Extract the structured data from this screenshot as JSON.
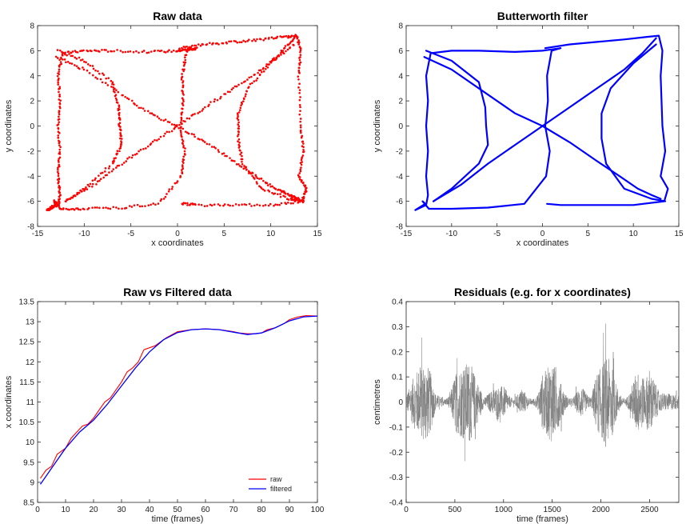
{
  "chart_data": [
    {
      "type": "scatter",
      "title": "Raw data",
      "xlabel": "x coordinates",
      "ylabel": "y coordinates",
      "xlim": [
        -15,
        15
      ],
      "ylim": [
        -8,
        8
      ],
      "xticks": [
        "-15",
        "-10",
        "-5",
        "0",
        "5",
        "10",
        "15"
      ],
      "yticks": [
        "-8",
        "-6",
        "-4",
        "-2",
        "0",
        "2",
        "4",
        "6",
        "8"
      ],
      "marker": "dots",
      "color": "#ff0000",
      "series": [
        {
          "x": [
            -14.0,
            -12.8,
            -12.6,
            -12.8,
            -12.6,
            -12.8,
            -12.6,
            -12.8,
            -12.3,
            -10.0,
            -7.0,
            -3.0,
            0.0,
            1.0,
            2.0,
            1.0,
            0.5,
            0.6,
            0.3,
            0.8,
            0.4,
            -2.0,
            -6.0,
            -10.0,
            -12.5,
            -13.2,
            -12.9,
            -14.0
          ],
          "y": [
            -6.7,
            -6.3,
            -5.5,
            -4.0,
            -2.0,
            0.0,
            2.0,
            4.0,
            5.8,
            6.0,
            6.0,
            5.9,
            6.0,
            6.1,
            6.2,
            6.0,
            4.0,
            2.0,
            0.0,
            -2.0,
            -4.0,
            -6.2,
            -6.5,
            -6.6,
            -6.6,
            -6.0,
            -6.2,
            -6.7
          ]
        },
        {
          "x": [
            -12.8,
            -10.0,
            -7.0,
            -6.3,
            -6.2,
            -6.0,
            -7.0,
            -10.0,
            -12.0
          ],
          "y": [
            6.0,
            5.2,
            3.5,
            1.5,
            0.0,
            -1.5,
            -3.0,
            -5.0,
            -6.0
          ]
        },
        {
          "x": [
            -13.0,
            -10.0,
            -6.0,
            -3.0,
            0.0,
            3.0,
            6.0,
            8.5,
            10.5,
            12.0,
            13.0
          ],
          "y": [
            5.5,
            4.5,
            2.5,
            1.0,
            0.0,
            -1.3,
            -2.8,
            -4.0,
            -5.0,
            -5.5,
            -5.8
          ]
        },
        {
          "x": [
            -12.0,
            -9.0,
            -6.0,
            -3.0,
            0.0,
            3.0,
            6.0,
            9.0,
            11.0,
            12.5
          ],
          "y": [
            -6.0,
            -4.7,
            -3.0,
            -1.5,
            0.0,
            1.5,
            3.0,
            4.5,
            5.8,
            7.0
          ]
        },
        {
          "x": [
            0.3,
            3.0,
            6.0,
            9.0,
            11.5,
            12.8,
            13.2,
            13.0,
            13.2,
            13.5,
            13.0,
            13.8,
            13.4,
            10.0,
            6.0,
            2.0,
            0.5
          ],
          "y": [
            6.2,
            6.5,
            6.7,
            6.9,
            7.1,
            7.2,
            6.0,
            4.0,
            0.0,
            -2.0,
            -4.0,
            -5.0,
            -6.0,
            -6.3,
            -6.3,
            -6.3,
            -6.2
          ]
        },
        {
          "x": [
            12.5,
            10.0,
            7.5,
            6.5,
            6.5,
            7.0,
            9.0,
            12.0,
            13.5
          ],
          "y": [
            6.5,
            5.0,
            3.0,
            1.0,
            -1.0,
            -3.0,
            -5.0,
            -5.8,
            -6.0
          ]
        }
      ]
    },
    {
      "type": "line",
      "title": "Butterworth filter",
      "xlabel": "x coordinates",
      "ylabel": "y coordinates",
      "xlim": [
        -15,
        15
      ],
      "ylim": [
        -8,
        8
      ],
      "xticks": [
        "-15",
        "-10",
        "-5",
        "0",
        "5",
        "10",
        "15"
      ],
      "yticks": [
        "-8",
        "-6",
        "-4",
        "-2",
        "0",
        "2",
        "4",
        "6",
        "8"
      ],
      "color": "#0000ff",
      "series": [
        {
          "x": [
            -14.0,
            -12.8,
            -12.6,
            -12.8,
            -12.6,
            -12.8,
            -12.6,
            -12.8,
            -12.3,
            -10.0,
            -7.0,
            -3.0,
            0.0,
            1.0,
            2.0,
            1.0,
            0.5,
            0.6,
            0.3,
            0.8,
            0.4,
            -2.0,
            -6.0,
            -10.0,
            -12.5,
            -13.2,
            -12.9,
            -14.0
          ],
          "y": [
            -6.7,
            -6.3,
            -5.5,
            -4.0,
            -2.0,
            0.0,
            2.0,
            4.0,
            5.8,
            6.0,
            6.0,
            5.9,
            6.0,
            6.1,
            6.2,
            6.0,
            4.0,
            2.0,
            0.0,
            -2.0,
            -4.0,
            -6.2,
            -6.5,
            -6.6,
            -6.6,
            -6.0,
            -6.2,
            -6.7
          ]
        },
        {
          "x": [
            -12.8,
            -10.0,
            -7.0,
            -6.3,
            -6.2,
            -6.0,
            -7.0,
            -10.0,
            -12.0
          ],
          "y": [
            6.0,
            5.2,
            3.5,
            1.5,
            0.0,
            -1.5,
            -3.0,
            -5.0,
            -6.0
          ]
        },
        {
          "x": [
            -13.0,
            -10.0,
            -6.0,
            -3.0,
            0.0,
            3.0,
            6.0,
            8.5,
            10.5,
            12.0,
            13.0
          ],
          "y": [
            5.5,
            4.5,
            2.5,
            1.0,
            0.0,
            -1.3,
            -2.8,
            -4.0,
            -5.0,
            -5.5,
            -5.8
          ]
        },
        {
          "x": [
            -12.0,
            -9.0,
            -6.0,
            -3.0,
            0.0,
            3.0,
            6.0,
            9.0,
            11.0,
            12.5
          ],
          "y": [
            -6.0,
            -4.7,
            -3.0,
            -1.5,
            0.0,
            1.5,
            3.0,
            4.5,
            5.8,
            7.0
          ]
        },
        {
          "x": [
            0.3,
            3.0,
            6.0,
            9.0,
            11.5,
            12.8,
            13.2,
            13.0,
            13.2,
            13.5,
            13.0,
            13.8,
            13.4,
            10.0,
            6.0,
            2.0,
            0.5
          ],
          "y": [
            6.2,
            6.5,
            6.7,
            6.9,
            7.1,
            7.2,
            6.0,
            4.0,
            0.0,
            -2.0,
            -4.0,
            -5.0,
            -6.0,
            -6.3,
            -6.3,
            -6.3,
            -6.2
          ]
        },
        {
          "x": [
            12.5,
            10.0,
            7.5,
            6.5,
            6.5,
            7.0,
            9.0,
            12.0,
            13.5
          ],
          "y": [
            6.5,
            5.0,
            3.0,
            1.0,
            -1.0,
            -3.0,
            -5.0,
            -5.8,
            -6.0
          ]
        }
      ]
    },
    {
      "type": "line",
      "title": "Raw vs Filtered data",
      "xlabel": "time (frames)",
      "ylabel": "x coordinates",
      "xlim": [
        0,
        100
      ],
      "ylim": [
        8.5,
        13.5
      ],
      "xticks": [
        "0",
        "10",
        "20",
        "30",
        "40",
        "50",
        "60",
        "70",
        "80",
        "90",
        "100"
      ],
      "yticks": [
        "8.5",
        "9",
        "9.5",
        "10",
        "10.5",
        "11",
        "11.5",
        "12",
        "12.5",
        "13",
        "13.5"
      ],
      "legend": "bottom-right",
      "series": [
        {
          "name": "raw",
          "color": "#ff0000",
          "x": [
            1,
            3,
            5,
            7,
            8,
            10,
            12,
            14,
            16,
            18,
            20,
            22,
            24,
            26,
            28,
            30,
            32,
            34,
            36,
            38,
            40,
            42,
            44,
            46,
            50,
            55,
            60,
            65,
            70,
            72,
            75,
            78,
            80,
            82,
            85,
            88,
            90,
            93,
            96,
            100
          ],
          "y": [
            9.1,
            9.3,
            9.4,
            9.7,
            9.75,
            9.85,
            10.1,
            10.25,
            10.4,
            10.45,
            10.6,
            10.8,
            11.0,
            11.1,
            11.3,
            11.5,
            11.75,
            11.85,
            12.0,
            12.3,
            12.35,
            12.4,
            12.5,
            12.6,
            12.75,
            12.8,
            12.82,
            12.8,
            12.75,
            12.72,
            12.7,
            12.7,
            12.72,
            12.8,
            12.85,
            12.95,
            13.05,
            13.12,
            13.15,
            13.14
          ]
        },
        {
          "name": "filtered",
          "color": "#0000ff",
          "x": [
            1,
            5,
            10,
            15,
            20,
            25,
            30,
            35,
            40,
            45,
            50,
            55,
            60,
            65,
            70,
            75,
            80,
            85,
            90,
            95,
            100
          ],
          "y": [
            8.95,
            9.35,
            9.85,
            10.25,
            10.55,
            10.95,
            11.4,
            11.85,
            12.25,
            12.55,
            12.73,
            12.8,
            12.82,
            12.8,
            12.74,
            12.68,
            12.72,
            12.85,
            13.02,
            13.12,
            13.14
          ]
        }
      ]
    },
    {
      "type": "line",
      "title": "Residuals (e.g. for x coordinates)",
      "xlabel": "time (frames)",
      "ylabel": "centimetres",
      "xlim": [
        0,
        2800
      ],
      "ylim": [
        -0.4,
        0.4
      ],
      "xticks": [
        "0",
        "500",
        "1000",
        "1500",
        "2000",
        "2500"
      ],
      "yticks": [
        "-0.4",
        "-0.3",
        "-0.2",
        "-0.1",
        "0",
        "0.1",
        "0.2",
        "0.3",
        "0.4"
      ],
      "color": "#808080",
      "envelope": {
        "x": [
          0,
          100,
          200,
          250,
          300,
          400,
          450,
          500,
          550,
          650,
          750,
          800,
          900,
          1000,
          1050,
          1100,
          1200,
          1250,
          1300,
          1350,
          1400,
          1450,
          1500,
          1600,
          1650,
          1700,
          1800,
          1850,
          1900,
          1950,
          2000,
          2050,
          2100,
          2150,
          2200,
          2250,
          2300,
          2350,
          2400,
          2450,
          2500,
          2550,
          2600,
          2700,
          2800
        ],
        "amp": [
          0.05,
          0.22,
          0.3,
          0.22,
          0.06,
          0.02,
          0.05,
          0.2,
          0.25,
          0.3,
          0.12,
          0.03,
          0.1,
          0.12,
          0.05,
          0.02,
          0.1,
          0.03,
          0.02,
          0.05,
          0.2,
          0.25,
          0.3,
          0.12,
          0.04,
          0.02,
          0.12,
          0.06,
          0.03,
          0.2,
          0.25,
          0.33,
          0.3,
          0.15,
          0.05,
          0.02,
          0.07,
          0.2,
          0.23,
          0.15,
          0.25,
          0.15,
          0.07,
          0.06,
          0.05
        ]
      }
    }
  ]
}
